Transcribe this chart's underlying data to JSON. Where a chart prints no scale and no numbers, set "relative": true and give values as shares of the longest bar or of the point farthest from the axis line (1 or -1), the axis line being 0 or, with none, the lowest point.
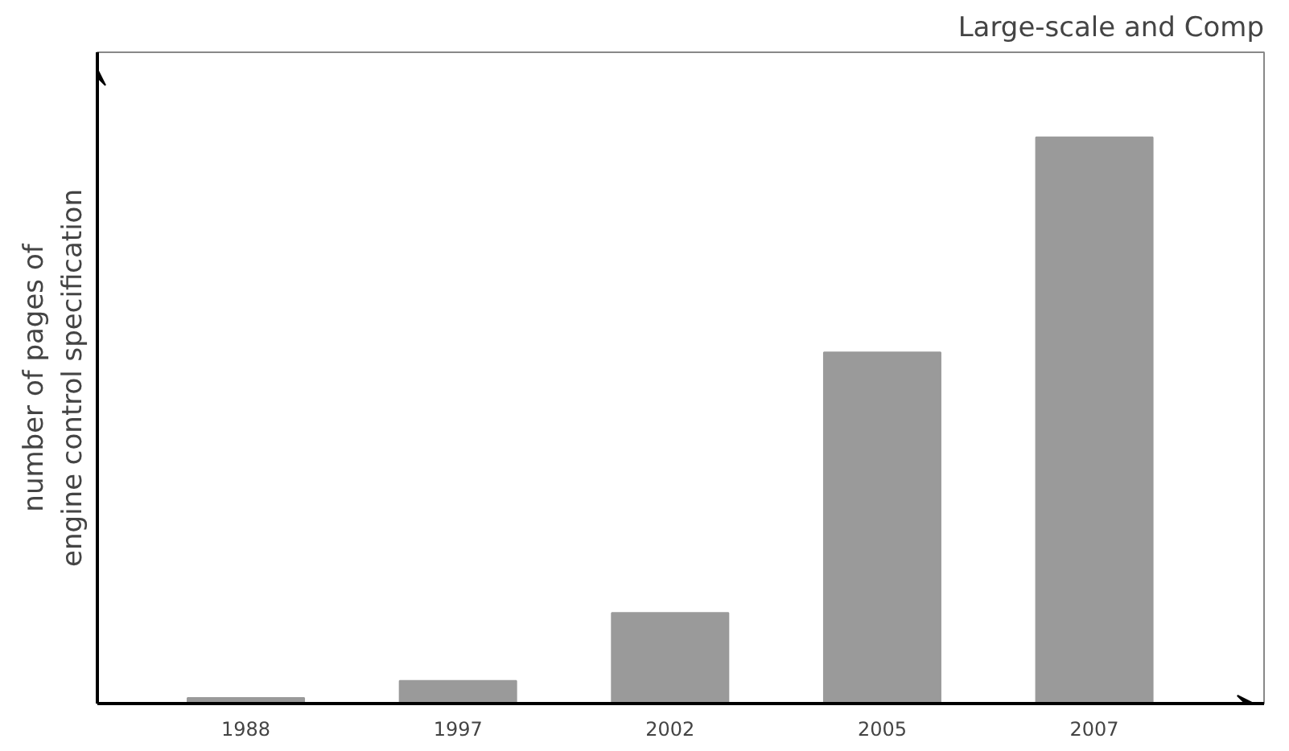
{
  "chart_data": {
    "type": "bar",
    "relative": true,
    "categories": [
      "1988",
      "1997",
      "2002",
      "2005",
      "2007"
    ],
    "values": [
      0.01,
      0.04,
      0.16,
      0.62,
      1
    ],
    "color": "#9a9a9a",
    "ylabel": "number of pages of\nengine control specification",
    "annotations": [
      "Large-scale and Comp"
    ],
    "grid": false
  }
}
